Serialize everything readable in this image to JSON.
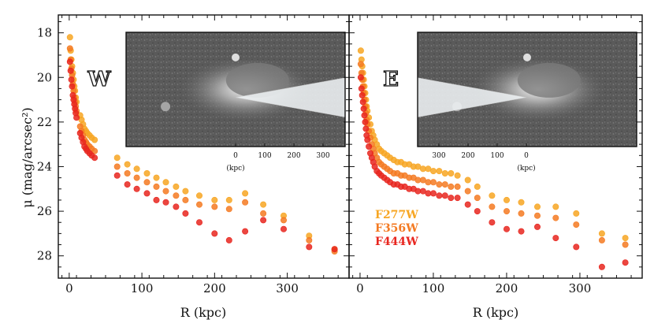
{
  "chart_data": {
    "type": "scatter",
    "ylabel": "μ (mag/arcsec²)",
    "xlabel": "R (kpc)",
    "ylim": [
      29,
      17.2
    ],
    "xlim": [
      -15,
      385
    ],
    "y_ticks": [
      18,
      20,
      22,
      24,
      26,
      28
    ],
    "x_ticks": [
      0,
      100,
      200,
      300
    ],
    "legend": {
      "position": "lower-left of right panel",
      "entries": [
        {
          "label": "F277W",
          "color": "#f7a623"
        },
        {
          "label": "F356W",
          "color": "#f47a22"
        },
        {
          "label": "F444W",
          "color": "#e8261f"
        }
      ]
    },
    "panels": [
      {
        "name": "W",
        "label": "W",
        "inset": {
          "xlabel": "(kpc)",
          "tick_labels": [
            "0",
            "100",
            "200",
            "300"
          ]
        },
        "series": [
          {
            "name": "F277W",
            "x": [
              1,
              2,
              3,
              4,
              5,
              6,
              7,
              8,
              9,
              10,
              15,
              17,
              19,
              21,
              23,
              25,
              28,
              31,
              35,
              66,
              80,
              93,
              107,
              120,
              133,
              147,
              160,
              179,
              200,
              220,
              242,
              267,
              295,
              330,
              365
            ],
            "y": [
              18.2,
              18.8,
              19.2,
              19.5,
              19.8,
              20.1,
              20.4,
              20.6,
              20.9,
              21.1,
              21.7,
              21.9,
              22.1,
              22.3,
              22.4,
              22.5,
              22.6,
              22.7,
              22.8,
              23.6,
              23.9,
              24.1,
              24.3,
              24.5,
              24.7,
              24.9,
              25.1,
              25.3,
              25.5,
              25.5,
              25.2,
              25.7,
              26.2,
              27.1,
              27.7
            ]
          },
          {
            "name": "F356W",
            "x": [
              1,
              2,
              3,
              4,
              5,
              6,
              7,
              8,
              9,
              10,
              15,
              17,
              19,
              21,
              23,
              25,
              28,
              31,
              35,
              66,
              80,
              93,
              107,
              120,
              133,
              147,
              160,
              179,
              200,
              220,
              242,
              267,
              295,
              330,
              365
            ],
            "y": [
              18.7,
              19.2,
              19.6,
              19.9,
              20.3,
              20.6,
              20.9,
              21.1,
              21.3,
              21.5,
              22.2,
              22.4,
              22.6,
              22.8,
              22.9,
              23.0,
              23.1,
              23.2,
              23.3,
              24.0,
              24.3,
              24.5,
              24.7,
              24.9,
              25.1,
              25.3,
              25.5,
              25.7,
              25.8,
              25.9,
              25.6,
              26.1,
              26.4,
              27.3,
              27.8
            ]
          },
          {
            "name": "F444W",
            "x": [
              1,
              2,
              3,
              4,
              5,
              6,
              7,
              8,
              9,
              10,
              15,
              17,
              19,
              21,
              23,
              25,
              28,
              31,
              35,
              66,
              80,
              93,
              107,
              120,
              133,
              147,
              160,
              179,
              200,
              220,
              242,
              267,
              295,
              330,
              365
            ],
            "y": [
              19.3,
              19.7,
              20.1,
              20.4,
              20.8,
              21.0,
              21.2,
              21.4,
              21.6,
              21.8,
              22.5,
              22.7,
              22.9,
              23.1,
              23.2,
              23.3,
              23.4,
              23.5,
              23.6,
              24.4,
              24.8,
              25.0,
              25.2,
              25.5,
              25.6,
              25.8,
              26.1,
              26.5,
              27.0,
              27.3,
              26.9,
              26.4,
              26.8,
              27.6,
              27.7
            ]
          }
        ]
      },
      {
        "name": "E",
        "label": "E",
        "inset": {
          "xlabel": "(kpc)",
          "tick_labels": [
            "300",
            "200",
            "100",
            "0"
          ]
        },
        "series": [
          {
            "name": "F277W",
            "x": [
              1,
              2,
              3,
              4,
              5,
              6,
              7,
              8,
              9,
              10,
              12,
              14,
              16,
              18,
              20,
              23,
              26,
              29,
              33,
              37,
              41,
              46,
              51,
              56,
              61,
              67,
              73,
              79,
              86,
              93,
              100,
              108,
              116,
              124,
              133,
              147,
              160,
              180,
              200,
              220,
              242,
              267,
              295,
              330,
              362
            ],
            "y": [
              18.8,
              19.2,
              19.5,
              19.8,
              20.1,
              20.4,
              20.7,
              21.0,
              21.3,
              21.5,
              21.8,
              22.1,
              22.4,
              22.6,
              22.8,
              23.0,
              23.2,
              23.3,
              23.4,
              23.5,
              23.6,
              23.7,
              23.8,
              23.8,
              23.9,
              23.9,
              24.0,
              24.0,
              24.1,
              24.1,
              24.2,
              24.2,
              24.3,
              24.3,
              24.4,
              24.6,
              24.9,
              25.3,
              25.5,
              25.6,
              25.8,
              25.8,
              26.1,
              27.0,
              27.2
            ]
          },
          {
            "name": "F356W",
            "x": [
              1,
              2,
              3,
              4,
              5,
              6,
              7,
              8,
              9,
              10,
              12,
              14,
              16,
              18,
              20,
              23,
              26,
              29,
              33,
              37,
              41,
              46,
              51,
              56,
              61,
              67,
              73,
              79,
              86,
              93,
              100,
              108,
              116,
              124,
              133,
              147,
              160,
              180,
              200,
              220,
              242,
              267,
              295,
              330,
              362
            ],
            "y": [
              19.4,
              19.8,
              20.1,
              20.4,
              20.7,
              21.0,
              21.3,
              21.6,
              21.9,
              22.1,
              22.4,
              22.7,
              23.0,
              23.2,
              23.4,
              23.6,
              23.8,
              23.9,
              24.0,
              24.1,
              24.2,
              24.3,
              24.3,
              24.4,
              24.4,
              24.5,
              24.5,
              24.6,
              24.6,
              24.7,
              24.7,
              24.8,
              24.8,
              24.9,
              24.9,
              25.1,
              25.4,
              25.8,
              26.0,
              26.1,
              26.2,
              26.3,
              26.6,
              27.3,
              27.5
            ]
          },
          {
            "name": "F444W",
            "x": [
              1,
              2,
              3,
              4,
              5,
              6,
              7,
              8,
              9,
              10,
              12,
              14,
              16,
              18,
              20,
              23,
              26,
              29,
              33,
              37,
              41,
              46,
              51,
              56,
              61,
              67,
              73,
              79,
              86,
              93,
              100,
              108,
              116,
              124,
              133,
              147,
              160,
              180,
              200,
              220,
              242,
              267,
              295,
              330,
              362
            ],
            "y": [
              20.0,
              20.5,
              20.8,
              21.1,
              21.4,
              21.7,
              22.0,
              22.3,
              22.6,
              22.8,
              23.1,
              23.4,
              23.6,
              23.8,
              24.0,
              24.2,
              24.3,
              24.4,
              24.5,
              24.6,
              24.7,
              24.8,
              24.8,
              24.9,
              24.9,
              25.0,
              25.0,
              25.1,
              25.1,
              25.2,
              25.2,
              25.3,
              25.3,
              25.4,
              25.4,
              25.7,
              26.0,
              26.5,
              26.8,
              26.9,
              26.7,
              27.2,
              27.6,
              28.5,
              28.3
            ]
          }
        ]
      }
    ]
  }
}
